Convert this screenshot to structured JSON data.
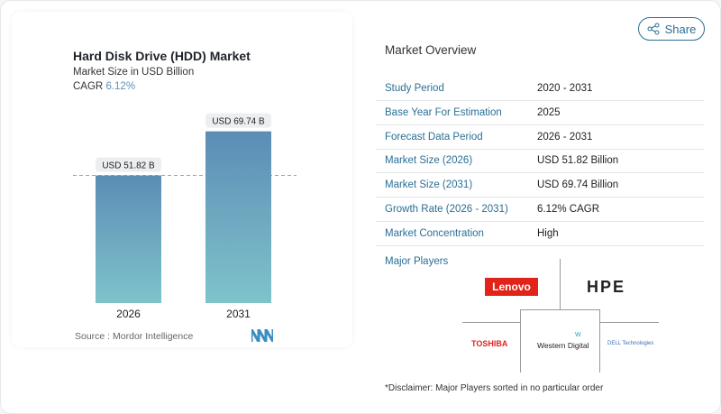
{
  "chart_data": {
    "type": "bar",
    "title": "Hard Disk Drive (HDD) Market",
    "subtitle": "Market Size in USD Billion",
    "cagr_label": "CAGR",
    "cagr_value": "6.12%",
    "categories": [
      "2026",
      "2031"
    ],
    "values": [
      51.82,
      69.74
    ],
    "data_labels": [
      "USD 51.82 B",
      "USD 69.74 B"
    ],
    "colors": {
      "bar_top": "#5b8db5",
      "bar_bottom": "#7fc3cb"
    },
    "source": "Source :  Mordor Intelligence"
  },
  "share_label": "Share",
  "overview": {
    "title": "Market Overview",
    "rows": [
      {
        "k": "Study Period",
        "v": "2020 - 2031"
      },
      {
        "k": "Base Year For Estimation",
        "v": "2025"
      },
      {
        "k": "Forecast Data Period",
        "v": "2026 - 2031"
      },
      {
        "k": "Market Size (2026)",
        "v": "USD 51.82 Billion"
      },
      {
        "k": "Market Size (2031)",
        "v": "USD 69.74 Billion"
      },
      {
        "k": "Growth Rate (2026 - 2031)",
        "v": "6.12% CAGR"
      },
      {
        "k": "Market Concentration",
        "v": "High"
      }
    ],
    "major_players_label": "Major Players",
    "players": [
      "Lenovo",
      "HPE",
      "TOSHIBA",
      "Western Digital",
      "DELL Technologies"
    ],
    "disclaimer": "*Disclaimer: Major Players sorted in no particular order"
  }
}
